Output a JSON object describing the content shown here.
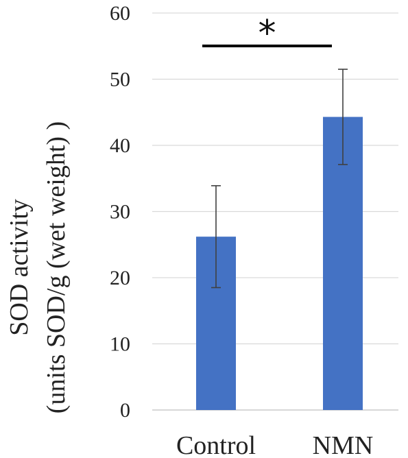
{
  "chart_data": {
    "type": "bar",
    "title": "",
    "xlabel": "",
    "ylabel_lines": [
      "SOD activity",
      "(units SOD/g (wet weight) )"
    ],
    "categories": [
      "Control",
      "NMN"
    ],
    "values": [
      26.2,
      44.3
    ],
    "error_low": [
      18.5,
      37.1
    ],
    "error_high": [
      33.9,
      51.5
    ],
    "ylim": [
      0,
      60
    ],
    "yticks": [
      0,
      10,
      20,
      30,
      40,
      50,
      60
    ],
    "grid": true,
    "bar_color": "#4472C4",
    "significance": {
      "between": [
        "Control",
        "NMN"
      ],
      "label": "*"
    }
  }
}
